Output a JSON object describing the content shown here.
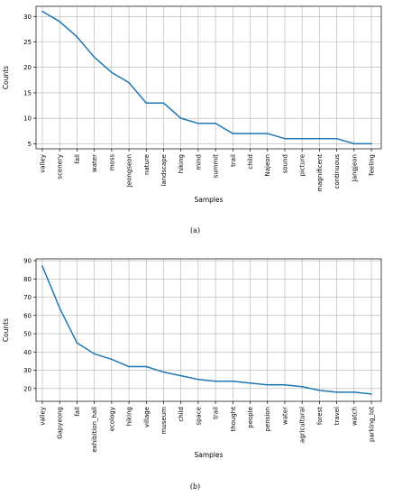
{
  "chart_data": [
    {
      "type": "line",
      "caption": "(a)",
      "xlabel": "Samples",
      "ylabel": "Counts",
      "grid": true,
      "ylim": [
        4,
        32
      ],
      "yticks": [
        5,
        10,
        15,
        20,
        25,
        30
      ],
      "categories": [
        "valley",
        "scenery",
        "fall",
        "water",
        "moss",
        "Jeongseon",
        "nature",
        "landscape",
        "hiking",
        "mind",
        "summit",
        "trail",
        "child",
        "Najeon",
        "sound",
        "picture",
        "magnificent",
        "continuous",
        "Jangjeon",
        "feeling"
      ],
      "values": [
        31,
        29,
        26,
        22,
        19,
        17,
        13,
        13,
        10,
        9,
        9,
        7,
        7,
        7,
        6,
        6,
        6,
        6,
        5,
        5
      ],
      "color": "#1f77b4"
    },
    {
      "type": "line",
      "caption": "(b)",
      "xlabel": "Samples",
      "ylabel": "Counts",
      "grid": true,
      "ylim": [
        13,
        91
      ],
      "yticks": [
        20,
        30,
        40,
        50,
        60,
        70,
        80,
        90
      ],
      "categories": [
        "valley",
        "Gapyeong",
        "fall",
        "exhibition_hall",
        "ecology",
        "hiking",
        "village",
        "museum",
        "child",
        "space",
        "trail",
        "thought",
        "people",
        "pension",
        "water",
        "agricultural",
        "forest",
        "travel",
        "watch",
        "parking_lot"
      ],
      "values": [
        87,
        64,
        45,
        39,
        36,
        32,
        32,
        29,
        27,
        25,
        24,
        24,
        23,
        22,
        22,
        21,
        19,
        18,
        18,
        17
      ],
      "color": "#1f77b4"
    }
  ]
}
